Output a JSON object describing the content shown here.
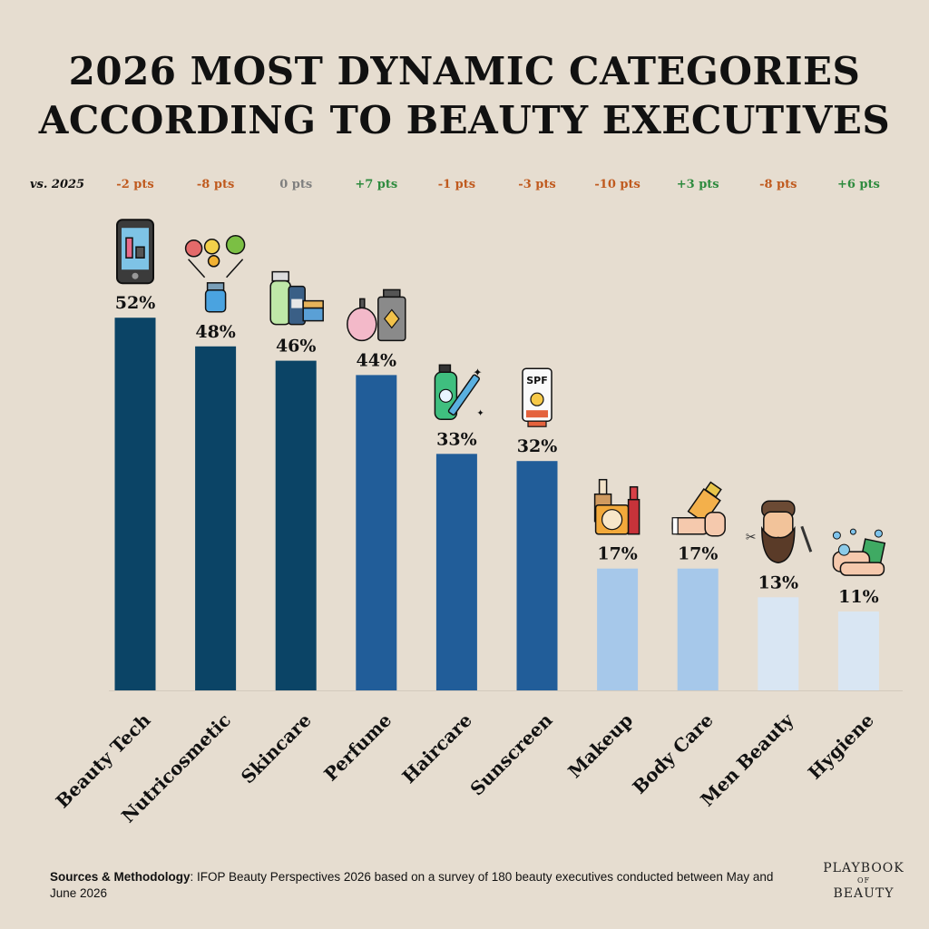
{
  "title": {
    "line1": "2026 MOST DYNAMIC CATEGORIES",
    "line2": "ACCORDING TO BEAUTY EXECUTIVES"
  },
  "vs_label": "vs. 2025",
  "colors": {
    "background": "#e6ddd0",
    "tier_dark": "#0b4466",
    "tier_mid": "#215d99",
    "tier_light": "#a6c8ea",
    "tier_pale": "#d9e6f3",
    "delta_negative": "#c05a1e",
    "delta_zero": "#7f7f7f",
    "delta_positive": "#2e8b3e"
  },
  "chart_data": {
    "type": "bar",
    "categories": [
      "Beauty Tech",
      "Nutricosmetic",
      "Skincare",
      "Perfume",
      "Haircare",
      "Sunscreen",
      "Makeup",
      "Body Care",
      "Men Beauty",
      "Hygiene"
    ],
    "values": [
      52,
      48,
      46,
      44,
      33,
      32,
      17,
      17,
      13,
      11
    ],
    "value_labels": [
      "52%",
      "48%",
      "46%",
      "44%",
      "33%",
      "32%",
      "17%",
      "17%",
      "13%",
      "11%"
    ],
    "deltas": [
      -2,
      -8,
      0,
      7,
      -1,
      -3,
      -10,
      3,
      -8,
      6
    ],
    "delta_labels": [
      "-2 pts",
      "-8 pts",
      "0 pts",
      "+7 pts",
      "-1 pts",
      "-3 pts",
      "-10 pts",
      "+3 pts",
      "-8 pts",
      "+6 pts"
    ],
    "tiers": [
      "dark",
      "dark",
      "dark",
      "mid",
      "mid",
      "mid",
      "light",
      "light",
      "pale",
      "pale"
    ],
    "icons": [
      "smartphone-icon",
      "nutricosmetic-icon",
      "skincare-icon",
      "perfume-icon",
      "haircare-icon",
      "sunscreen-icon",
      "makeup-icon",
      "body-care-icon",
      "men-beauty-icon",
      "hygiene-icon"
    ],
    "ylim": [
      0,
      56
    ],
    "grid": false,
    "legend": "none"
  },
  "footer": {
    "sources_label": "Sources & Methodology",
    "sources_text": ": IFOP Beauty Perspectives 2026 based on a survey of 180 beauty executives conducted between May and June 2026"
  },
  "logo": {
    "line1": "PLAYBOOK",
    "line2": "OF",
    "line3": "BEAUTY"
  }
}
